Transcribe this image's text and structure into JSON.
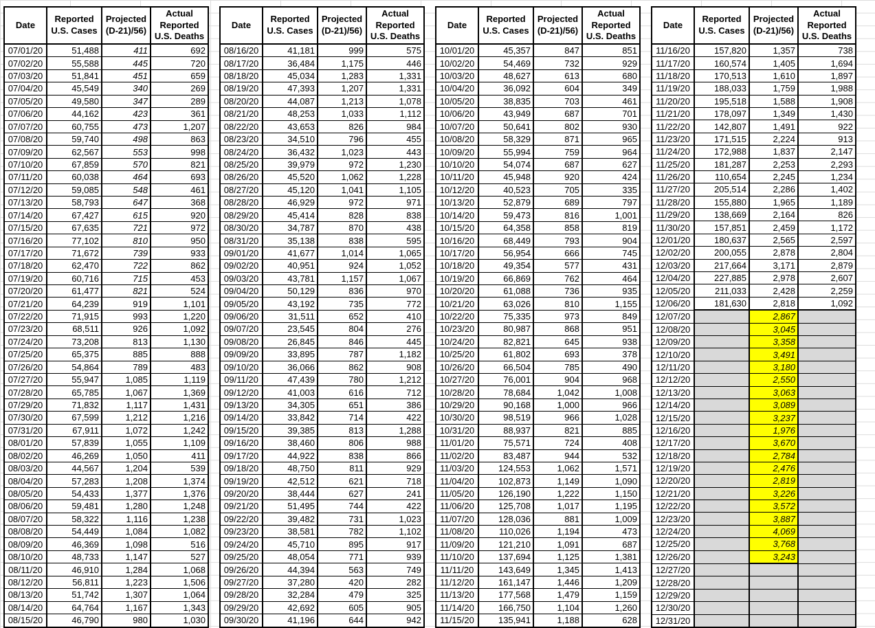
{
  "columns": [
    "Date",
    "Reported U.S. Cases",
    "Projected (D-21)/56)",
    "Actual Reported U.S. Deaths"
  ],
  "colors": {
    "projection_highlight": "#FFFF00",
    "empty_cell_fill": "#D9D9D9",
    "border": "#000000",
    "background": "#FFFFFF"
  },
  "tables": [
    {
      "rows": [
        [
          "07/01/20",
          "51,488",
          "411",
          "692",
          "i"
        ],
        [
          "07/02/20",
          "55,588",
          "445",
          "720",
          "i"
        ],
        [
          "07/03/20",
          "51,841",
          "451",
          "659",
          "i"
        ],
        [
          "07/04/20",
          "45,549",
          "340",
          "269",
          "i"
        ],
        [
          "07/05/20",
          "49,580",
          "347",
          "289",
          "i"
        ],
        [
          "07/06/20",
          "44,162",
          "423",
          "361",
          "i"
        ],
        [
          "07/07/20",
          "60,755",
          "473",
          "1,207",
          "i"
        ],
        [
          "07/08/20",
          "59,740",
          "498",
          "863",
          "i"
        ],
        [
          "07/09/20",
          "62,567",
          "553",
          "998",
          "i"
        ],
        [
          "07/10/20",
          "67,859",
          "570",
          "821",
          "i"
        ],
        [
          "07/11/20",
          "60,038",
          "464",
          "693",
          "i"
        ],
        [
          "07/12/20",
          "59,085",
          "548",
          "461",
          "i"
        ],
        [
          "07/13/20",
          "58,793",
          "647",
          "368",
          "i"
        ],
        [
          "07/14/20",
          "67,427",
          "615",
          "920",
          "i"
        ],
        [
          "07/15/20",
          "67,635",
          "721",
          "972",
          "i"
        ],
        [
          "07/16/20",
          "77,102",
          "810",
          "950",
          "i"
        ],
        [
          "07/17/20",
          "71,672",
          "739",
          "933",
          "i"
        ],
        [
          "07/18/20",
          "62,470",
          "722",
          "862",
          "i"
        ],
        [
          "07/19/20",
          "60,716",
          "715",
          "453",
          "i"
        ],
        [
          "07/20/20",
          "61,477",
          "821",
          "524",
          "i"
        ],
        [
          "07/21/20",
          "64,239",
          "919",
          "1,101"
        ],
        [
          "07/22/20",
          "71,915",
          "993",
          "1,220"
        ],
        [
          "07/23/20",
          "68,511",
          "926",
          "1,092"
        ],
        [
          "07/24/20",
          "73,208",
          "813",
          "1,130"
        ],
        [
          "07/25/20",
          "65,375",
          "885",
          "888"
        ],
        [
          "07/26/20",
          "54,864",
          "789",
          "483"
        ],
        [
          "07/27/20",
          "55,947",
          "1,085",
          "1,119"
        ],
        [
          "07/28/20",
          "65,785",
          "1,067",
          "1,369"
        ],
        [
          "07/29/20",
          "71,832",
          "1,117",
          "1,431"
        ],
        [
          "07/30/20",
          "67,599",
          "1,212",
          "1,216"
        ],
        [
          "07/31/20",
          "67,911",
          "1,072",
          "1,242"
        ],
        [
          "08/01/20",
          "57,839",
          "1,055",
          "1,109"
        ],
        [
          "08/02/20",
          "46,269",
          "1,050",
          "411"
        ],
        [
          "08/03/20",
          "44,567",
          "1,204",
          "539"
        ],
        [
          "08/04/20",
          "57,283",
          "1,208",
          "1,374"
        ],
        [
          "08/05/20",
          "54,433",
          "1,377",
          "1,376"
        ],
        [
          "08/06/20",
          "59,481",
          "1,280",
          "1,248"
        ],
        [
          "08/07/20",
          "58,322",
          "1,116",
          "1,238"
        ],
        [
          "08/08/20",
          "54,449",
          "1,084",
          "1,082"
        ],
        [
          "08/09/20",
          "46,369",
          "1,098",
          "516"
        ],
        [
          "08/10/20",
          "48,733",
          "1,147",
          "527"
        ],
        [
          "08/11/20",
          "46,910",
          "1,284",
          "1,068"
        ],
        [
          "08/12/20",
          "56,811",
          "1,223",
          "1,506"
        ],
        [
          "08/13/20",
          "51,742",
          "1,307",
          "1,064"
        ],
        [
          "08/14/20",
          "64,764",
          "1,167",
          "1,343"
        ],
        [
          "08/15/20",
          "46,790",
          "980",
          "1,030"
        ]
      ]
    },
    {
      "rows": [
        [
          "08/16/20",
          "41,181",
          "999",
          "575"
        ],
        [
          "08/17/20",
          "36,484",
          "1,175",
          "446"
        ],
        [
          "08/18/20",
          "45,034",
          "1,283",
          "1,331"
        ],
        [
          "08/19/20",
          "47,393",
          "1,207",
          "1,331"
        ],
        [
          "08/20/20",
          "44,087",
          "1,213",
          "1,078"
        ],
        [
          "08/21/20",
          "48,253",
          "1,033",
          "1,112"
        ],
        [
          "08/22/20",
          "43,653",
          "826",
          "984"
        ],
        [
          "08/23/20",
          "34,510",
          "796",
          "455"
        ],
        [
          "08/24/20",
          "36,432",
          "1,023",
          "443"
        ],
        [
          "08/25/20",
          "39,979",
          "972",
          "1,230"
        ],
        [
          "08/26/20",
          "45,520",
          "1,062",
          "1,228"
        ],
        [
          "08/27/20",
          "45,120",
          "1,041",
          "1,105"
        ],
        [
          "08/28/20",
          "46,929",
          "972",
          "971"
        ],
        [
          "08/29/20",
          "45,414",
          "828",
          "838"
        ],
        [
          "08/30/20",
          "34,787",
          "870",
          "438"
        ],
        [
          "08/31/20",
          "35,138",
          "838",
          "595"
        ],
        [
          "09/01/20",
          "41,677",
          "1,014",
          "1,065"
        ],
        [
          "09/02/20",
          "40,951",
          "924",
          "1,052"
        ],
        [
          "09/03/20",
          "43,781",
          "1,157",
          "1,067"
        ],
        [
          "09/04/20",
          "50,129",
          "836",
          "970"
        ],
        [
          "09/05/20",
          "43,192",
          "735",
          "772"
        ],
        [
          "09/06/20",
          "31,511",
          "652",
          "410"
        ],
        [
          "09/07/20",
          "23,545",
          "804",
          "276"
        ],
        [
          "09/08/20",
          "26,845",
          "846",
          "445"
        ],
        [
          "09/09/20",
          "33,895",
          "787",
          "1,182"
        ],
        [
          "09/10/20",
          "36,066",
          "862",
          "908"
        ],
        [
          "09/11/20",
          "47,439",
          "780",
          "1,212"
        ],
        [
          "09/12/20",
          "41,003",
          "616",
          "712"
        ],
        [
          "09/13/20",
          "34,305",
          "651",
          "386"
        ],
        [
          "09/14/20",
          "33,842",
          "714",
          "422"
        ],
        [
          "09/15/20",
          "39,385",
          "813",
          "1,288"
        ],
        [
          "09/16/20",
          "38,460",
          "806",
          "988"
        ],
        [
          "09/17/20",
          "44,922",
          "838",
          "866"
        ],
        [
          "09/18/20",
          "48,750",
          "811",
          "929"
        ],
        [
          "09/19/20",
          "42,512",
          "621",
          "718"
        ],
        [
          "09/20/20",
          "38,444",
          "627",
          "241"
        ],
        [
          "09/21/20",
          "51,495",
          "744",
          "422"
        ],
        [
          "09/22/20",
          "39,482",
          "731",
          "1,023"
        ],
        [
          "09/23/20",
          "38,581",
          "782",
          "1,102"
        ],
        [
          "09/24/20",
          "45,710",
          "895",
          "917"
        ],
        [
          "09/25/20",
          "48,054",
          "771",
          "939"
        ],
        [
          "09/26/20",
          "44,394",
          "563",
          "749"
        ],
        [
          "09/27/20",
          "37,280",
          "420",
          "282"
        ],
        [
          "09/28/20",
          "32,284",
          "479",
          "325"
        ],
        [
          "09/29/20",
          "42,692",
          "605",
          "905"
        ],
        [
          "09/30/20",
          "41,196",
          "644",
          "942"
        ]
      ]
    },
    {
      "rows": [
        [
          "10/01/20",
          "45,357",
          "847",
          "851"
        ],
        [
          "10/02/20",
          "54,469",
          "732",
          "929"
        ],
        [
          "10/03/20",
          "48,627",
          "613",
          "680"
        ],
        [
          "10/04/20",
          "36,092",
          "604",
          "349"
        ],
        [
          "10/05/20",
          "38,835",
          "703",
          "461"
        ],
        [
          "10/06/20",
          "43,949",
          "687",
          "701"
        ],
        [
          "10/07/20",
          "50,641",
          "802",
          "930"
        ],
        [
          "10/08/20",
          "58,329",
          "871",
          "965"
        ],
        [
          "10/09/20",
          "55,994",
          "759",
          "964"
        ],
        [
          "10/10/20",
          "54,074",
          "687",
          "627"
        ],
        [
          "10/11/20",
          "45,948",
          "920",
          "424"
        ],
        [
          "10/12/20",
          "40,523",
          "705",
          "335"
        ],
        [
          "10/13/20",
          "52,879",
          "689",
          "797"
        ],
        [
          "10/14/20",
          "59,473",
          "816",
          "1,001"
        ],
        [
          "10/15/20",
          "64,358",
          "858",
          "819"
        ],
        [
          "10/16/20",
          "68,449",
          "793",
          "904"
        ],
        [
          "10/17/20",
          "56,954",
          "666",
          "745"
        ],
        [
          "10/18/20",
          "49,354",
          "577",
          "431"
        ],
        [
          "10/19/20",
          "66,869",
          "762",
          "464"
        ],
        [
          "10/20/20",
          "61,088",
          "736",
          "935"
        ],
        [
          "10/21/20",
          "63,026",
          "810",
          "1,155"
        ],
        [
          "10/22/20",
          "75,335",
          "973",
          "849"
        ],
        [
          "10/23/20",
          "80,987",
          "868",
          "951"
        ],
        [
          "10/24/20",
          "82,821",
          "645",
          "938"
        ],
        [
          "10/25/20",
          "61,802",
          "693",
          "378"
        ],
        [
          "10/26/20",
          "66,504",
          "785",
          "490"
        ],
        [
          "10/27/20",
          "76,001",
          "904",
          "968"
        ],
        [
          "10/28/20",
          "78,684",
          "1,042",
          "1,008"
        ],
        [
          "10/29/20",
          "90,168",
          "1,000",
          "966"
        ],
        [
          "10/30/20",
          "98,519",
          "966",
          "1,028"
        ],
        [
          "10/31/20",
          "88,937",
          "821",
          "885"
        ],
        [
          "11/01/20",
          "75,571",
          "724",
          "408"
        ],
        [
          "11/02/20",
          "83,487",
          "944",
          "532"
        ],
        [
          "11/03/20",
          "124,553",
          "1,062",
          "1,571"
        ],
        [
          "11/04/20",
          "102,873",
          "1,149",
          "1,090"
        ],
        [
          "11/05/20",
          "126,190",
          "1,222",
          "1,150"
        ],
        [
          "11/06/20",
          "125,708",
          "1,017",
          "1,195"
        ],
        [
          "11/07/20",
          "128,036",
          "881",
          "1,009"
        ],
        [
          "11/08/20",
          "110,026",
          "1,194",
          "473"
        ],
        [
          "11/09/20",
          "121,210",
          "1,091",
          "687"
        ],
        [
          "11/10/20",
          "137,694",
          "1,125",
          "1,381"
        ],
        [
          "11/11/20",
          "143,649",
          "1,345",
          "1,413"
        ],
        [
          "11/12/20",
          "161,147",
          "1,446",
          "1,209"
        ],
        [
          "11/13/20",
          "177,568",
          "1,479",
          "1,159"
        ],
        [
          "11/14/20",
          "166,750",
          "1,104",
          "1,260"
        ],
        [
          "11/15/20",
          "135,941",
          "1,188",
          "628"
        ]
      ]
    },
    {
      "rows": [
        [
          "11/16/20",
          "157,820",
          "1,357",
          "738"
        ],
        [
          "11/17/20",
          "160,574",
          "1,405",
          "1,694"
        ],
        [
          "11/18/20",
          "170,513",
          "1,610",
          "1,897"
        ],
        [
          "11/19/20",
          "188,033",
          "1,759",
          "1,988"
        ],
        [
          "11/20/20",
          "195,518",
          "1,588",
          "1,908"
        ],
        [
          "11/21/20",
          "178,097",
          "1,349",
          "1,430"
        ],
        [
          "11/22/20",
          "142,807",
          "1,491",
          "922"
        ],
        [
          "11/23/20",
          "171,515",
          "2,224",
          "913"
        ],
        [
          "11/24/20",
          "172,988",
          "1,837",
          "2,147"
        ],
        [
          "11/25/20",
          "181,287",
          "2,253",
          "2,293"
        ],
        [
          "11/26/20",
          "110,654",
          "2,245",
          "1,234"
        ],
        [
          "11/27/20",
          "205,514",
          "2,286",
          "1,402"
        ],
        [
          "11/28/20",
          "155,880",
          "1,965",
          "1,189"
        ],
        [
          "11/29/20",
          "138,669",
          "2,164",
          "826"
        ],
        [
          "11/30/20",
          "157,851",
          "2,459",
          "1,172"
        ],
        [
          "12/01/20",
          "180,637",
          "2,565",
          "2,597"
        ],
        [
          "12/02/20",
          "200,055",
          "2,878",
          "2,804"
        ],
        [
          "12/03/20",
          "217,664",
          "3,171",
          "2,879"
        ],
        [
          "12/04/20",
          "227,885",
          "2,978",
          "2,607"
        ],
        [
          "12/05/20",
          "211,033",
          "2,428",
          "2,259"
        ],
        [
          "12/06/20",
          "181,630",
          "2,818",
          "1,092"
        ],
        [
          "12/07/20",
          "",
          "2,867",
          "",
          "projfirst"
        ],
        [
          "12/08/20",
          "",
          "3,045",
          "",
          "proj"
        ],
        [
          "12/09/20",
          "",
          "3,358",
          "",
          "proj"
        ],
        [
          "12/10/20",
          "",
          "3,491",
          "",
          "proj"
        ],
        [
          "12/11/20",
          "",
          "3,180",
          "",
          "proj"
        ],
        [
          "12/12/20",
          "",
          "2,550",
          "",
          "proj"
        ],
        [
          "12/13/20",
          "",
          "3,063",
          "",
          "proj"
        ],
        [
          "12/14/20",
          "",
          "3,089",
          "",
          "proj"
        ],
        [
          "12/15/20",
          "",
          "3,237",
          "",
          "proj"
        ],
        [
          "12/16/20",
          "",
          "1,976",
          "",
          "proj"
        ],
        [
          "12/17/20",
          "",
          "3,670",
          "",
          "proj"
        ],
        [
          "12/18/20",
          "",
          "2,784",
          "",
          "proj"
        ],
        [
          "12/19/20",
          "",
          "2,476",
          "",
          "proj"
        ],
        [
          "12/20/20",
          "",
          "2,819",
          "",
          "proj"
        ],
        [
          "12/21/20",
          "",
          "3,226",
          "",
          "proj"
        ],
        [
          "12/22/20",
          "",
          "3,572",
          "",
          "proj"
        ],
        [
          "12/23/20",
          "",
          "3,887",
          "",
          "proj"
        ],
        [
          "12/24/20",
          "",
          "4,069",
          "",
          "proj"
        ],
        [
          "12/25/20",
          "",
          "3,768",
          "",
          "proj"
        ],
        [
          "12/26/20",
          "",
          "3,243",
          "",
          "projlast"
        ],
        [
          "12/27/20",
          "",
          "",
          "",
          "empty"
        ],
        [
          "12/28/20",
          "",
          "",
          "",
          "empty"
        ],
        [
          "12/29/20",
          "",
          "",
          "",
          "empty"
        ],
        [
          "12/30/20",
          "",
          "",
          "",
          "empty"
        ],
        [
          "12/31/20",
          "",
          "",
          "",
          "empty"
        ]
      ]
    }
  ]
}
